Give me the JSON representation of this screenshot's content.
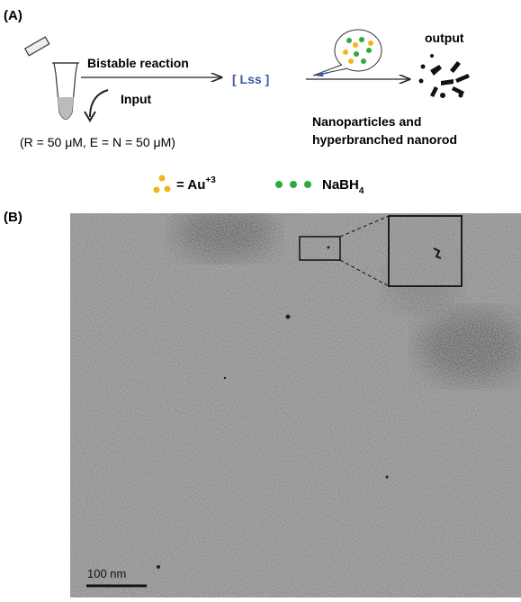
{
  "panel_a": {
    "label": "(A)",
    "reaction": "Bistable reaction",
    "state": "[ Lss ]",
    "input": "Input",
    "conditions": "(R = 50 μM, E = N = 50 μM)",
    "output": "output",
    "product_line1": "Nanoparticles and",
    "product_line2": "hyperbranched nanorod",
    "legend": {
      "gold": "= Au",
      "gold_charge": "+3",
      "borohydride": "NaBH",
      "borohydride_sub": "4"
    }
  },
  "panel_b": {
    "label": "(B)",
    "scale_bar": "100 nm"
  }
}
